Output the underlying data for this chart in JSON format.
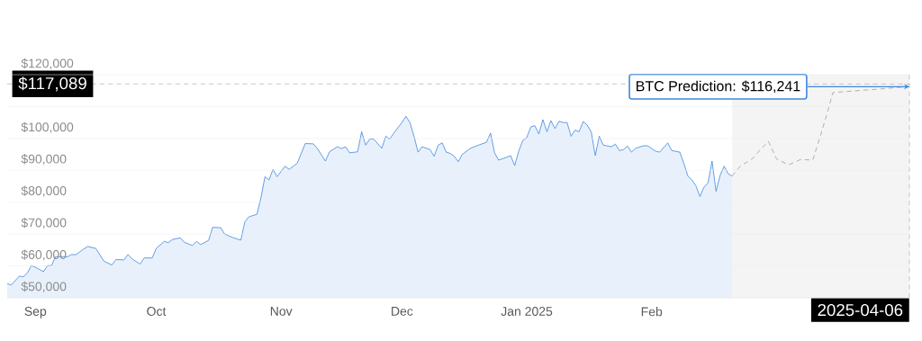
{
  "chart_data": {
    "type": "area",
    "xlim": [
      "2024-08-25",
      "2025-04-06"
    ],
    "ylim": [
      50000,
      120000
    ],
    "xticks": [
      {
        "value": "2024-09-01",
        "label": "Sep"
      },
      {
        "value": "2024-10-01",
        "label": "Oct"
      },
      {
        "value": "2024-11-01",
        "label": "Nov"
      },
      {
        "value": "2024-12-01",
        "label": "Dec"
      },
      {
        "value": "2025-01-01",
        "label": "Jan 2025"
      },
      {
        "value": "2025-02-01",
        "label": "Feb"
      }
    ],
    "yticks": [
      {
        "value": 50000,
        "label": "$50,000"
      },
      {
        "value": 60000,
        "label": "$60,000"
      },
      {
        "value": 70000,
        "label": "$70,000"
      },
      {
        "value": 80000,
        "label": "$80,000"
      },
      {
        "value": 90000,
        "label": "$90,000"
      },
      {
        "value": 100000,
        "label": "$100,000"
      },
      {
        "value": 110000,
        "label": null
      },
      {
        "value": 120000,
        "label": "$120,000"
      }
    ],
    "grid": "y",
    "series": [
      {
        "color": "#3f87e0",
        "x": [
          "2024-08-25",
          "2024-08-26",
          "2024-08-28",
          "2024-08-29",
          "2024-08-30",
          "2024-08-31",
          "2024-09-01",
          "2024-09-03",
          "2024-09-04",
          "2024-09-05",
          "2024-09-06",
          "2024-09-09",
          "2024-09-10",
          "2024-09-11",
          "2024-09-13",
          "2024-09-14",
          "2024-09-16",
          "2024-09-18",
          "2024-09-20",
          "2024-09-21",
          "2024-09-23",
          "2024-09-24",
          "2024-09-25",
          "2024-09-27",
          "2024-09-28",
          "2024-09-30",
          "2024-10-01",
          "2024-10-03",
          "2024-10-04",
          "2024-10-05",
          "2024-10-07",
          "2024-10-08",
          "2024-10-10",
          "2024-10-11",
          "2024-10-12",
          "2024-10-14",
          "2024-10-15",
          "2024-10-17",
          "2024-10-18",
          "2024-10-20",
          "2024-10-22",
          "2024-10-23",
          "2024-10-24",
          "2024-10-26",
          "2024-10-27",
          "2024-10-28",
          "2024-10-29",
          "2024-10-30",
          "2024-10-31",
          "2024-11-02",
          "2024-11-03",
          "2024-11-05",
          "2024-11-07",
          "2024-11-09",
          "2024-11-10",
          "2024-11-12",
          "2024-11-13",
          "2024-11-15",
          "2024-11-16",
          "2024-11-17",
          "2024-11-18",
          "2024-11-20",
          "2024-11-21",
          "2024-11-22",
          "2024-11-23",
          "2024-11-24",
          "2024-11-26",
          "2024-11-27",
          "2024-11-28",
          "2024-11-29",
          "2024-12-01",
          "2024-12-02",
          "2024-12-03",
          "2024-12-04",
          "2024-12-05",
          "2024-12-06",
          "2024-12-08",
          "2024-12-09",
          "2024-12-10",
          "2024-12-11",
          "2024-12-12",
          "2024-12-13",
          "2024-12-14",
          "2024-12-15",
          "2024-12-16",
          "2024-12-18",
          "2024-12-20",
          "2024-12-22",
          "2024-12-23",
          "2024-12-24",
          "2024-12-25",
          "2024-12-27",
          "2024-12-28",
          "2024-12-29",
          "2024-12-30",
          "2024-12-31",
          "2025-01-01",
          "2025-01-02",
          "2025-01-03",
          "2025-01-04",
          "2025-01-05",
          "2025-01-06",
          "2025-01-07",
          "2025-01-08",
          "2025-01-09",
          "2025-01-10",
          "2025-01-11",
          "2025-01-12",
          "2025-01-13",
          "2025-01-14",
          "2025-01-15",
          "2025-01-16",
          "2025-01-17",
          "2025-01-18",
          "2025-01-19",
          "2025-01-20",
          "2025-01-22",
          "2025-01-23",
          "2025-01-24",
          "2025-01-25",
          "2025-01-26",
          "2025-01-27",
          "2025-01-28",
          "2025-01-30",
          "2025-01-31",
          "2025-02-02",
          "2025-02-03",
          "2025-02-05",
          "2025-02-06",
          "2025-02-08",
          "2025-02-09",
          "2025-02-10",
          "2025-02-11",
          "2025-02-12",
          "2025-02-13",
          "2025-02-14",
          "2025-02-15",
          "2025-02-16",
          "2025-02-17",
          "2025-02-18",
          "2025-02-19",
          "2025-02-20",
          "2025-02-21"
        ],
        "values": [
          54500,
          54000,
          56800,
          56600,
          57800,
          60100,
          59600,
          58200,
          60100,
          60100,
          62900,
          62900,
          63600,
          63500,
          65300,
          66100,
          65500,
          61500,
          60300,
          62000,
          61900,
          63600,
          62200,
          60600,
          62500,
          62500,
          65500,
          67700,
          67300,
          68300,
          68800,
          67400,
          66400,
          67700,
          66700,
          68000,
          72100,
          72000,
          70000,
          68900,
          68100,
          73800,
          75400,
          76200,
          81400,
          88000,
          87000,
          90300,
          88000,
          91300,
          90300,
          92200,
          98400,
          98300,
          96900,
          92900,
          95800,
          97400,
          96800,
          97400,
          95500,
          95800,
          102100,
          97900,
          99800,
          99800,
          96900,
          100700,
          99800,
          101700,
          105000,
          106900,
          105000,
          100700,
          95700,
          97400,
          96500,
          94400,
          97900,
          98600,
          95700,
          95300,
          94400,
          92700,
          95000,
          96900,
          97900,
          98800,
          101700,
          95500,
          93200,
          94100,
          94600,
          91500,
          96000,
          99300,
          100300,
          103600,
          104000,
          101400,
          105900,
          102100,
          105600,
          103100,
          105400,
          105000,
          105000,
          100700,
          102600,
          102100,
          105300,
          104200,
          102100,
          94600,
          100700,
          97900,
          97400,
          98200,
          96200,
          96500,
          97600,
          95700,
          96900,
          97700,
          97700,
          96000,
          95700,
          98600,
          96200,
          95700,
          92200,
          88200,
          87000,
          85100,
          81800,
          84700,
          86100,
          92900,
          83400,
          88400,
          91300,
          88900,
          88200
        ]
      },
      {
        "type": "line",
        "line_style": "dashed",
        "color": "#9e9e9e",
        "x": [
          "2025-02-21",
          "2025-02-23",
          "2025-02-26",
          "2025-02-28",
          "2025-03-02",
          "2025-03-04",
          "2025-03-07",
          "2025-03-10",
          "2025-03-13",
          "2025-03-15",
          "2025-03-17",
          "2025-03-18",
          "2025-04-06"
        ],
        "values": [
          88200,
          91300,
          93600,
          96500,
          99100,
          93600,
          91700,
          93400,
          93200,
          101200,
          109700,
          114400,
          116241
        ]
      }
    ],
    "bands": [
      {
        "axis": "x",
        "from": "2025-02-21",
        "to": "2025-04-06",
        "color": "#f4f4f4"
      }
    ],
    "ref_lines": [
      {
        "axis": "y",
        "value": 117089,
        "label": "$117,089",
        "line_style": "dashed",
        "color": "#999999"
      },
      {
        "axis": "x",
        "value": "2025-04-06",
        "label": "2025-04-06",
        "line_style": "dashed",
        "color": "#999999"
      }
    ],
    "annotations": [
      {
        "text": "BTC Prediction: $116,241",
        "x": "2025-04-06",
        "y": 116241
      }
    ]
  }
}
